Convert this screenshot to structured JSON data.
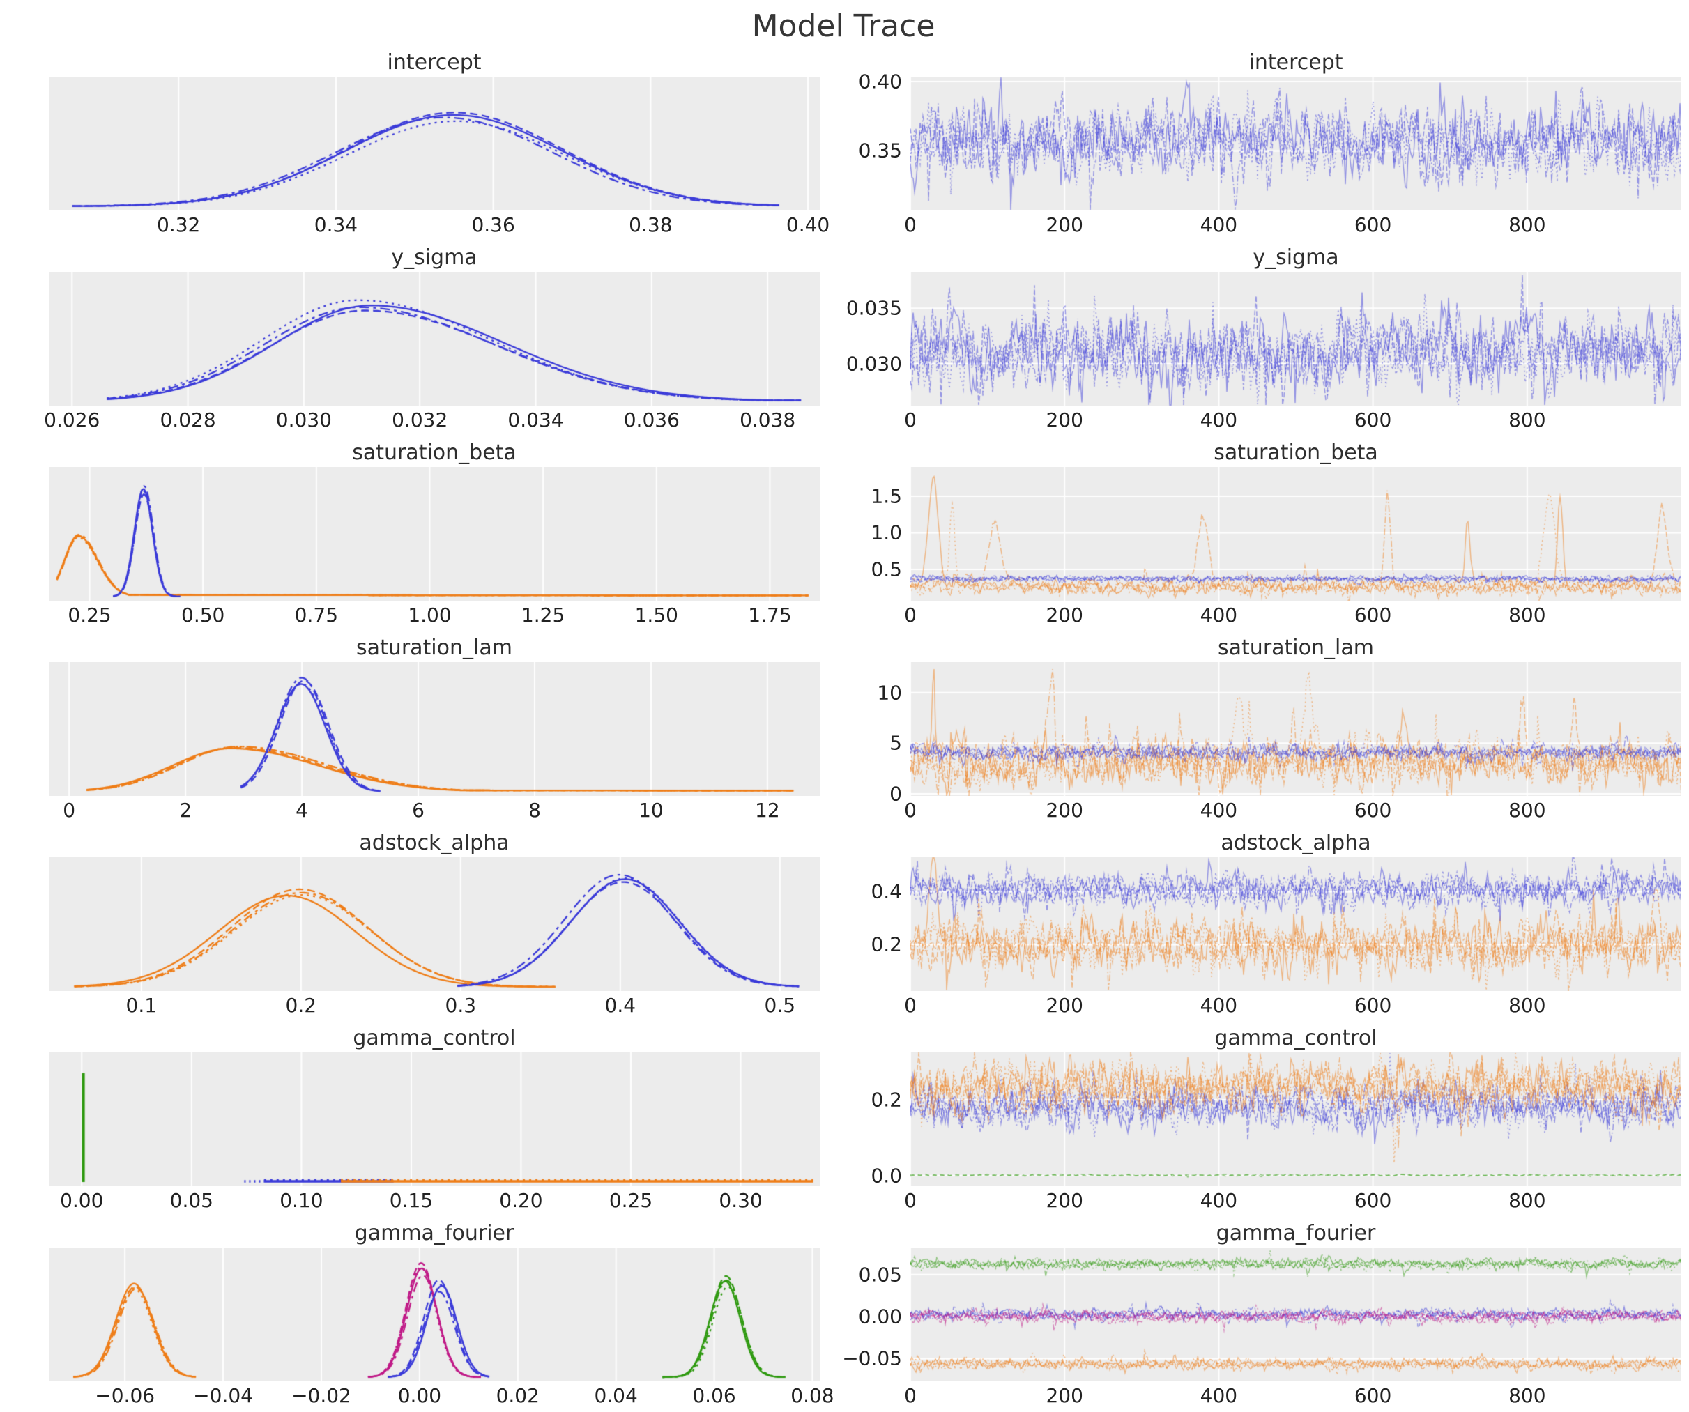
{
  "colors": {
    "blue": "#3a3ad9",
    "orange": "#ef7d17",
    "green": "#2f9a10",
    "magenta": "#c01987",
    "panel_bg": "#ececec",
    "grid": "#ffffff",
    "text": "#222222"
  },
  "chart_data": {
    "type": "line",
    "title": "Model Trace",
    "description": "MCMC posterior trace plot: left column kernel density estimates per chain, right column sampled values per draw",
    "x_trace_range": [
      0,
      1000
    ],
    "x_trace_ticks": {
      "labels": [
        "0",
        "200",
        "400",
        "600",
        "800"
      ],
      "values": [
        0,
        200,
        400,
        600,
        800
      ]
    },
    "rows": [
      {
        "name": "intercept",
        "kde": {
          "xrange": [
            0.3035,
            0.4015
          ],
          "xticks": {
            "labels": [
              "0.32",
              "0.34",
              "0.36",
              "0.38",
              "0.40"
            ],
            "values": [
              0.32,
              0.34,
              0.36,
              0.38,
              0.4
            ]
          },
          "series": [
            {
              "type": "kde",
              "color": "blue",
              "mean": 0.354,
              "sd": 0.0138,
              "height": 0.78,
              "from": 0.3065,
              "to": 0.3965
            }
          ]
        },
        "trace": {
          "yrange": [
            0.307,
            0.4035
          ],
          "yticks": {
            "labels": [
              "0.40",
              "0.35"
            ],
            "values": [
              0.4,
              0.35
            ]
          },
          "series": [
            {
              "color": "blue",
              "mean": 0.3555,
              "sd": 0.011,
              "chains": 4
            }
          ]
        }
      },
      {
        "name": "y_sigma",
        "kde": {
          "xrange": [
            0.0256,
            0.0389
          ],
          "xticks": {
            "labels": [
              "0.026",
              "0.028",
              "0.030",
              "0.032",
              "0.034",
              "0.036",
              "0.038"
            ],
            "values": [
              0.026,
              0.028,
              0.03,
              0.032,
              0.034,
              0.036,
              0.038
            ]
          },
          "series": [
            {
              "type": "kde",
              "color": "blue",
              "mean": 0.031,
              "sd": 0.00165,
              "height": 0.82,
              "skew": 0.4,
              "from": 0.0266,
              "to": 0.0386,
              "tail_to": 0.0386
            }
          ]
        },
        "trace": {
          "yrange": [
            0.0262,
            0.0383
          ],
          "yticks": {
            "labels": [
              "0.035",
              "0.030"
            ],
            "values": [
              0.035,
              0.03
            ]
          },
          "series": [
            {
              "color": "blue",
              "mean": 0.0312,
              "sd": 0.0014,
              "chains": 4
            }
          ]
        }
      },
      {
        "name": "saturation_beta",
        "kde": {
          "xrange": [
            0.16,
            1.86
          ],
          "xticks": {
            "labels": [
              "0.25",
              "0.50",
              "0.75",
              "1.00",
              "1.25",
              "1.50",
              "1.75"
            ],
            "values": [
              0.25,
              0.5,
              0.75,
              1.0,
              1.25,
              1.5,
              1.75
            ]
          },
          "series": [
            {
              "type": "kde",
              "color": "orange",
              "mean": 0.225,
              "sd": 0.03,
              "height": 0.52,
              "skew": 0.4,
              "from": 0.178,
              "to": 1.835,
              "tail_to": 1.835
            },
            {
              "type": "kde",
              "color": "blue",
              "mean": 0.368,
              "sd": 0.02,
              "height": 0.92,
              "from": 0.302,
              "to": 0.45
            }
          ]
        },
        "trace": {
          "yrange": [
            0.07,
            1.9
          ],
          "yticks": {
            "labels": [
              "1.5",
              "1.0",
              "0.5"
            ],
            "values": [
              1.5,
              1.0,
              0.5
            ]
          },
          "series": [
            {
              "color": "orange",
              "mean": 0.27,
              "sd": 0.045,
              "chains": 4,
              "spikes": {
                "count": 9,
                "max": 1.78
              }
            },
            {
              "color": "blue",
              "mean": 0.37,
              "sd": 0.018,
              "chains": 4
            }
          ]
        }
      },
      {
        "name": "saturation_lam",
        "kde": {
          "xrange": [
            -0.35,
            12.9
          ],
          "xticks": {
            "labels": [
              "0",
              "2",
              "4",
              "6",
              "8",
              "10",
              "12"
            ],
            "values": [
              0,
              2,
              4,
              6,
              8,
              10,
              12
            ]
          },
          "series": [
            {
              "type": "kde",
              "color": "orange",
              "mean": 2.8,
              "sd": 1.0,
              "height": 0.37,
              "skew": 0.5,
              "from": 0.3,
              "to": 12.45,
              "tail_to": 12.45
            },
            {
              "type": "kde",
              "color": "blue",
              "mean": 4.0,
              "sd": 0.42,
              "height": 0.92,
              "from": 2.95,
              "to": 5.35
            }
          ]
        },
        "trace": {
          "yrange": [
            -0.2,
            13.0
          ],
          "yticks": {
            "labels": [
              "10",
              "5",
              "0"
            ],
            "values": [
              10,
              5,
              0
            ]
          },
          "series": [
            {
              "color": "orange",
              "mean": 3.1,
              "sd": 0.95,
              "chains": 4,
              "spikes": {
                "count": 8,
                "max": 12.2
              }
            },
            {
              "color": "blue",
              "mean": 4.1,
              "sd": 0.33,
              "chains": 4
            }
          ]
        }
      },
      {
        "name": "adstock_alpha",
        "kde": {
          "xrange": [
            0.042,
            0.525
          ],
          "xticks": {
            "labels": [
              "0.1",
              "0.2",
              "0.3",
              "0.4",
              "0.5"
            ],
            "values": [
              0.1,
              0.2,
              0.3,
              0.4,
              0.5
            ]
          },
          "series": [
            {
              "type": "kde",
              "color": "orange",
              "mean": 0.196,
              "sd": 0.043,
              "height": 0.78,
              "from": 0.058,
              "to": 0.36
            },
            {
              "type": "kde",
              "color": "blue",
              "mean": 0.401,
              "sd": 0.034,
              "height": 0.92,
              "from": 0.298,
              "to": 0.512
            }
          ]
        },
        "trace": {
          "yrange": [
            0.025,
            0.53
          ],
          "yticks": {
            "labels": [
              "0.4",
              "0.2"
            ],
            "values": [
              0.4,
              0.2
            ]
          },
          "series": [
            {
              "color": "orange",
              "mean": 0.2,
              "sd": 0.04,
              "chains": 4,
              "spikes": {
                "count": 2,
                "max": 0.52
              }
            },
            {
              "color": "blue",
              "mean": 0.41,
              "sd": 0.027,
              "chains": 4
            }
          ]
        }
      },
      {
        "name": "gamma_control",
        "kde": {
          "xrange": [
            -0.015,
            0.336
          ],
          "xticks": {
            "labels": [
              "0.00",
              "0.05",
              "0.10",
              "0.15",
              "0.20",
              "0.25",
              "0.30"
            ],
            "values": [
              0.0,
              0.05,
              0.1,
              0.15,
              0.2,
              0.25,
              0.3
            ]
          },
          "series": [
            {
              "type": "spike",
              "color": "green",
              "x": 0.0005,
              "height": 0.93
            },
            {
              "type": "flat",
              "color": "blue",
              "x0": 0.083,
              "x1": 0.142,
              "lead": 0.009
            },
            {
              "type": "flat",
              "color": "orange",
              "x0": 0.118,
              "x1": 0.333
            }
          ]
        },
        "trace": {
          "yrange": [
            -0.028,
            0.325
          ],
          "yticks": {
            "labels": [
              "0.2",
              "0.0"
            ],
            "values": [
              0.2,
              0.0
            ]
          },
          "series": [
            {
              "color": "blue",
              "mean": 0.18,
              "sd": 0.022,
              "chains": 4
            },
            {
              "color": "orange",
              "mean": 0.235,
              "sd": 0.027,
              "chains": 4
            },
            {
              "color": "green",
              "mean": 0.0008,
              "sd": 0.0008,
              "chains": 2,
              "dashed": true
            }
          ]
        }
      },
      {
        "name": "gamma_fourier",
        "kde": {
          "xrange": [
            -0.0755,
            0.0815
          ],
          "xticks": {
            "labels": [
              "−0.06",
              "−0.04",
              "−0.02",
              "0.00",
              "0.02",
              "0.04",
              "0.06",
              "0.08"
            ],
            "values": [
              -0.06,
              -0.04,
              -0.02,
              0.0,
              0.02,
              0.04,
              0.06,
              0.08
            ]
          },
          "series": [
            {
              "type": "kde",
              "color": "orange",
              "mean": -0.058,
              "sd": 0.0037,
              "height": 0.8,
              "from": -0.0705,
              "to": -0.0455
            },
            {
              "type": "kde",
              "color": "magenta",
              "mean": 0.0006,
              "sd": 0.0031,
              "height": 0.93,
              "from": -0.0105,
              "to": 0.0125
            },
            {
              "type": "kde",
              "color": "blue",
              "mean": 0.0042,
              "sd": 0.0031,
              "height": 0.78,
              "from": -0.0065,
              "to": 0.0145
            },
            {
              "type": "kde",
              "color": "green",
              "mean": 0.0625,
              "sd": 0.0031,
              "height": 0.82,
              "from": 0.0495,
              "to": 0.0745
            }
          ]
        },
        "trace": {
          "yrange": [
            -0.077,
            0.082
          ],
          "yticks": {
            "labels": [
              "0.05",
              "0.00",
              "−0.05"
            ],
            "values": [
              0.05,
              0.0,
              -0.05
            ]
          },
          "series": [
            {
              "color": "green",
              "mean": 0.0625,
              "sd": 0.0026,
              "chains": 4
            },
            {
              "color": "blue",
              "mean": 0.002,
              "sd": 0.0028,
              "chains": 4
            },
            {
              "color": "magenta",
              "mean": 0.0002,
              "sd": 0.0028,
              "chains": 4
            },
            {
              "color": "orange",
              "mean": -0.056,
              "sd": 0.0028,
              "chains": 4
            }
          ]
        }
      }
    ]
  }
}
